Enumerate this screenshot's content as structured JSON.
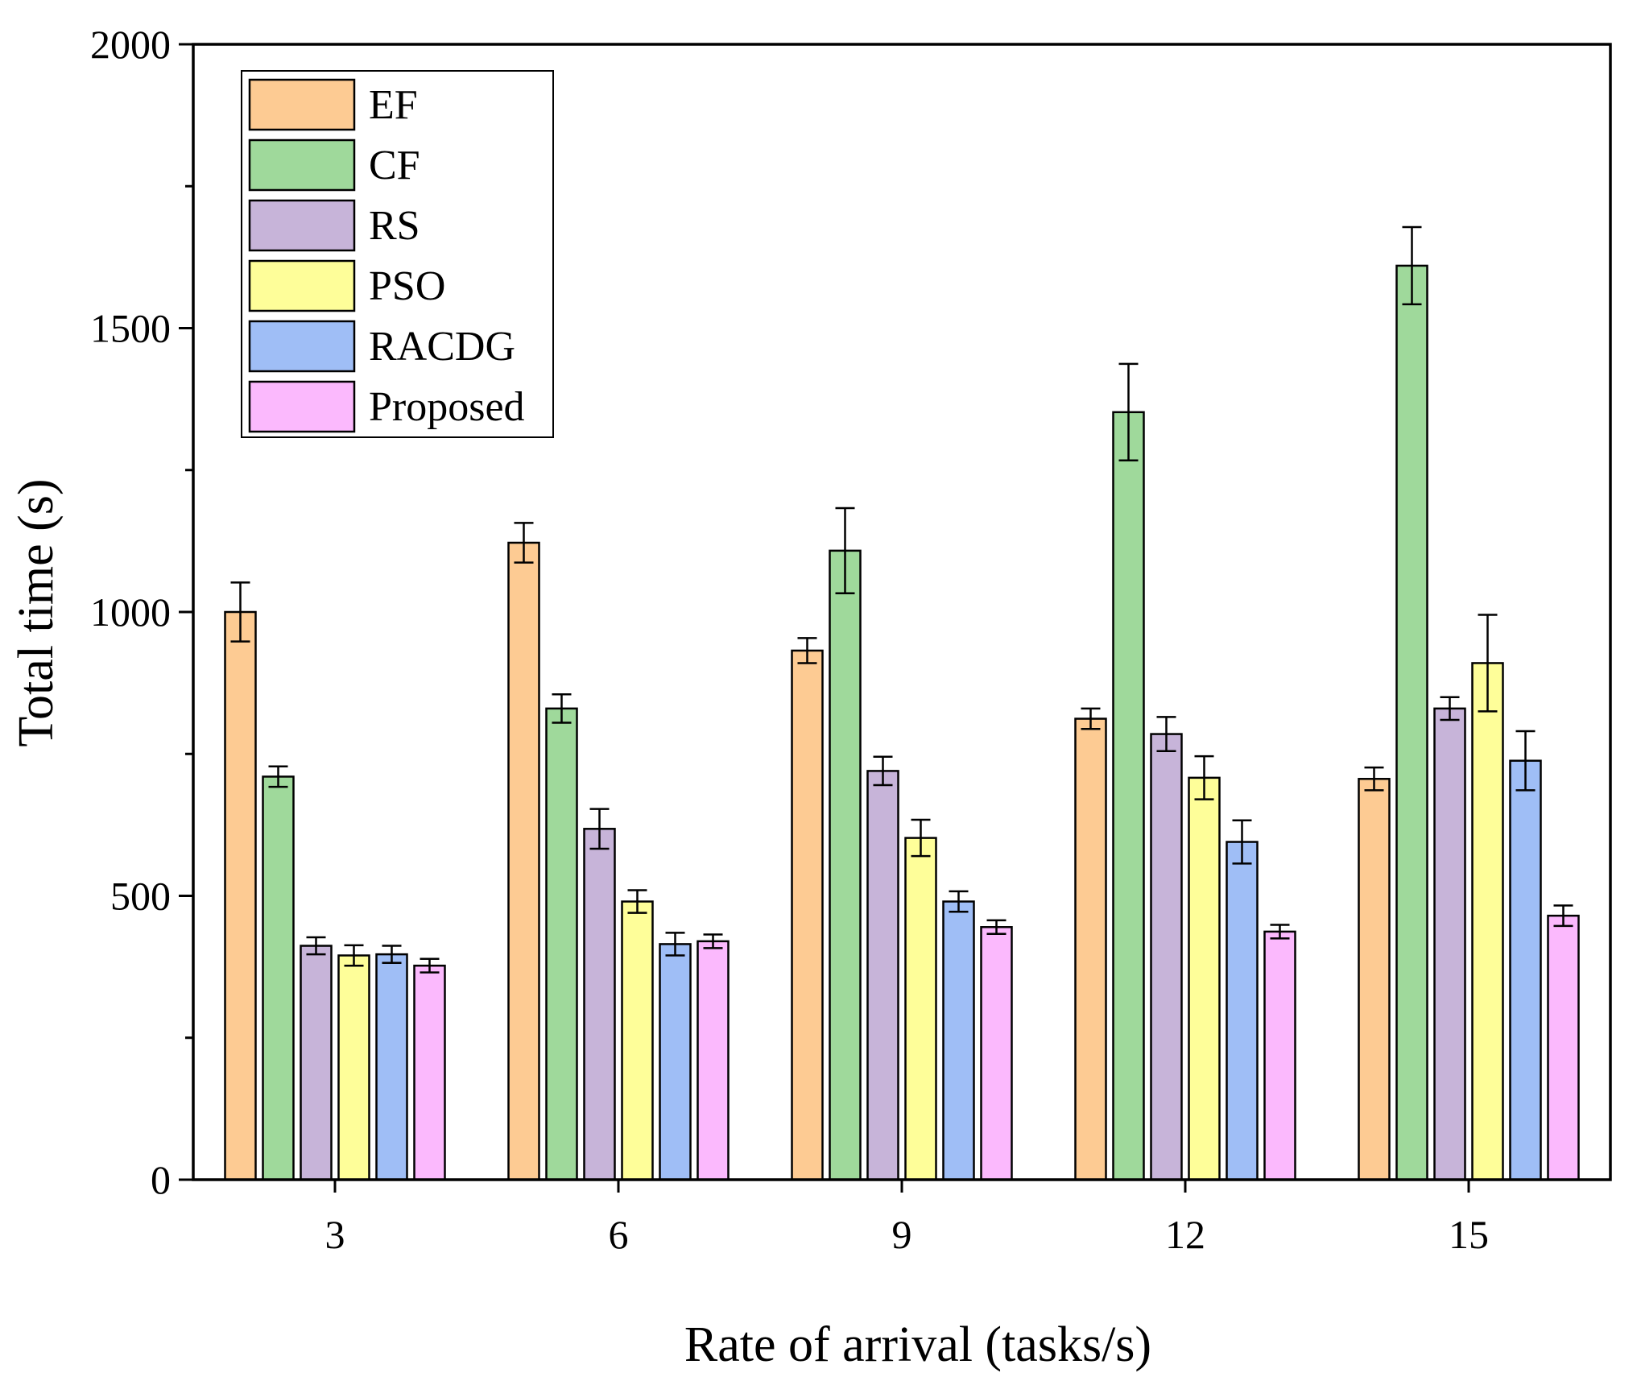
{
  "chart_data": {
    "type": "bar",
    "xlabel": "Rate of arrival (tasks/s)",
    "ylabel": "Total time (s)",
    "ylim": [
      0,
      2000
    ],
    "yticks": [
      0,
      500,
      1000,
      1500,
      2000
    ],
    "grid": false,
    "legend_position": "top-left",
    "categories": [
      "3",
      "6",
      "9",
      "12",
      "15"
    ],
    "series": [
      {
        "name": "EF",
        "color": "#FDCB93",
        "values": [
          1000,
          1122,
          932,
          812,
          706
        ],
        "errors": [
          52,
          35,
          22,
          18,
          20
        ]
      },
      {
        "name": "CF",
        "color": "#9FD99B",
        "values": [
          710,
          830,
          1108,
          1352,
          1610
        ],
        "errors": [
          18,
          25,
          75,
          85,
          68
        ]
      },
      {
        "name": "RS",
        "color": "#C7B4D9",
        "values": [
          412,
          618,
          720,
          785,
          830
        ],
        "errors": [
          15,
          35,
          25,
          30,
          20
        ]
      },
      {
        "name": "PSO",
        "color": "#FEFE99",
        "values": [
          395,
          490,
          602,
          708,
          910
        ],
        "errors": [
          18,
          20,
          32,
          38,
          85
        ]
      },
      {
        "name": "RACDG",
        "color": "#9FBEF6",
        "values": [
          397,
          415,
          490,
          595,
          738
        ],
        "errors": [
          15,
          20,
          18,
          38,
          52
        ]
      },
      {
        "name": "Proposed",
        "color": "#FBB9FD",
        "values": [
          377,
          420,
          445,
          437,
          465
        ],
        "errors": [
          12,
          12,
          12,
          12,
          18
        ]
      }
    ]
  }
}
